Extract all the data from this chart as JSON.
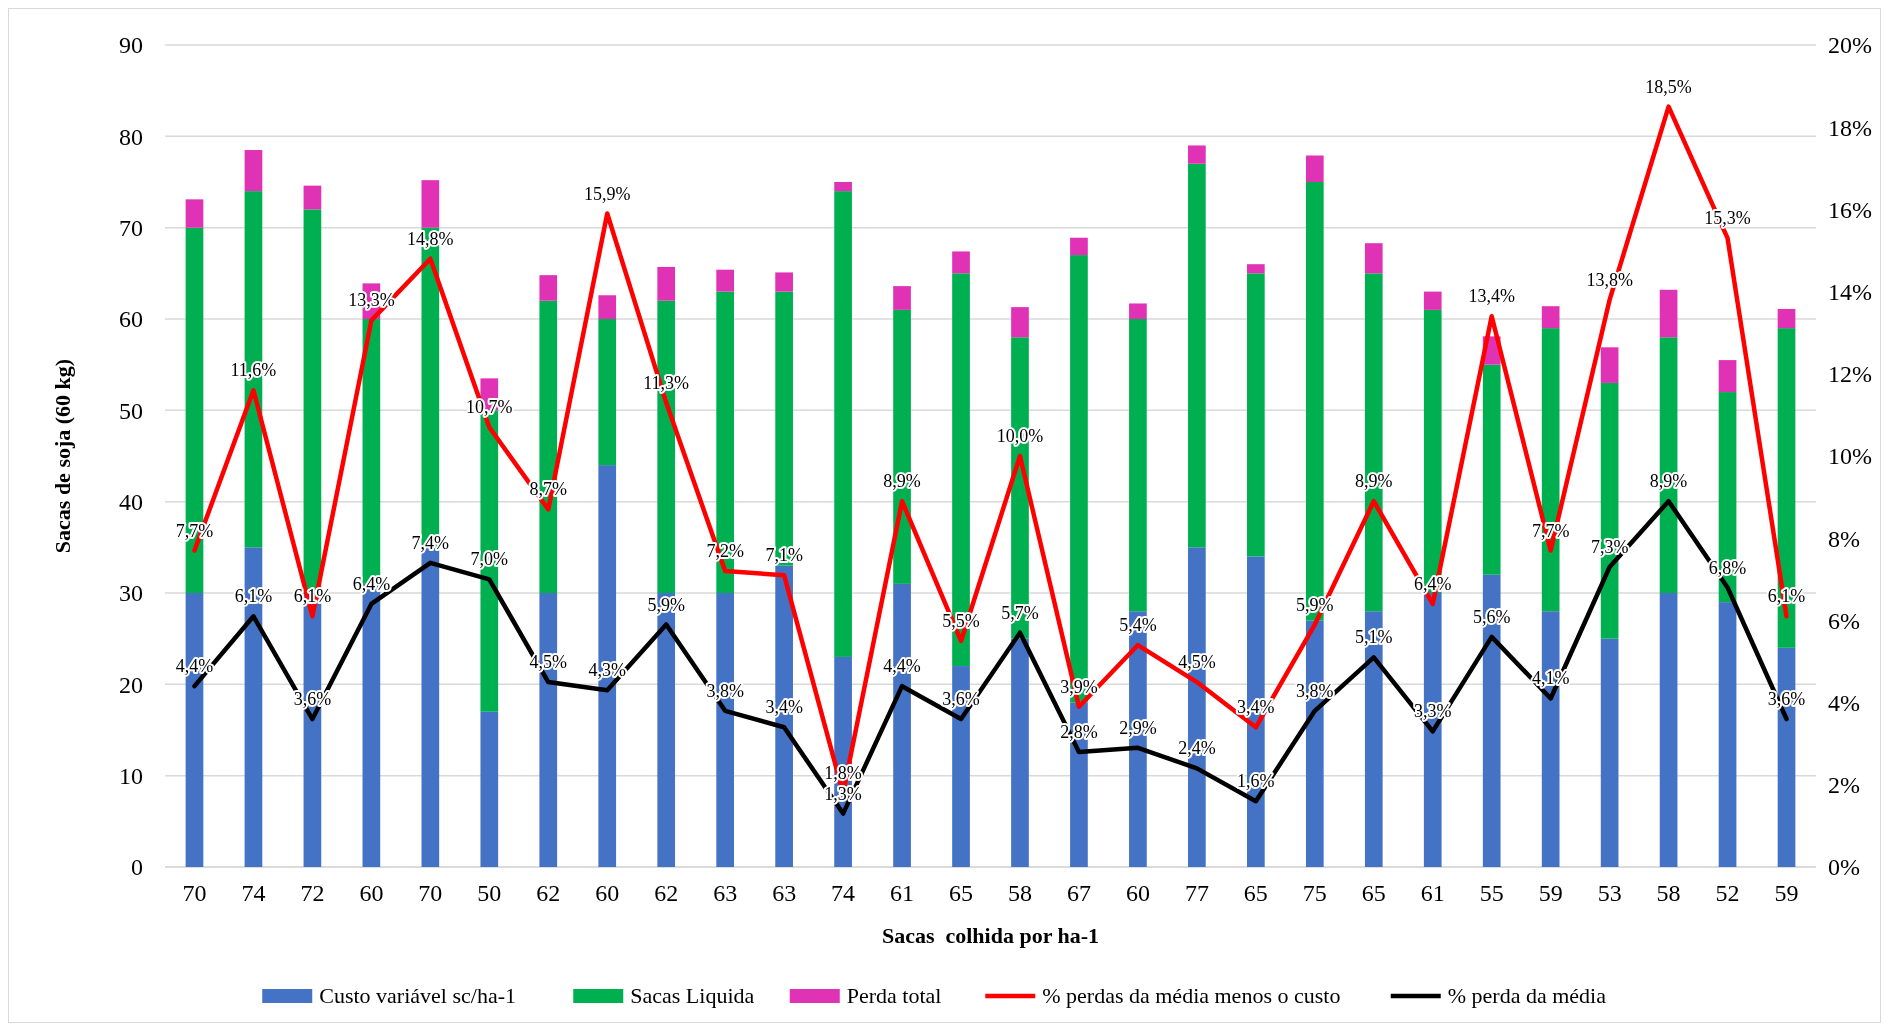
{
  "chart_data": {
    "type": "bar",
    "stacked": true,
    "xlabel": "Sacas  colhida por ha-1",
    "ylabel": "Sacas de soja (60 kg)",
    "categories": [
      "70",
      "74",
      "72",
      "60",
      "70",
      "50",
      "62",
      "60",
      "62",
      "63",
      "63",
      "74",
      "61",
      "65",
      "58",
      "67",
      "60",
      "77",
      "65",
      "75",
      "65",
      "61",
      "55",
      "59",
      "53",
      "58",
      "52",
      "59"
    ],
    "series": [
      {
        "name": "Custo variável sc/ha-1",
        "color": "#4472c4",
        "values": [
          30,
          35,
          30,
          31,
          35,
          17,
          30,
          44,
          30,
          30,
          33,
          23,
          31,
          22,
          25,
          18,
          28,
          35,
          34,
          27,
          28,
          30,
          32,
          28,
          25,
          30,
          29,
          24
        ]
      },
      {
        "name": "Sacas Liquida",
        "color": "#00b050",
        "values": [
          40,
          39,
          42,
          29,
          35,
          33,
          32,
          16,
          32,
          33,
          30,
          51,
          30,
          43,
          33,
          49,
          32,
          42,
          31,
          48,
          37,
          31,
          23,
          31,
          28,
          28,
          23,
          35
        ]
      },
      {
        "name": "Perda total",
        "color": "#e032b4",
        "values": [
          3.1,
          4.5,
          2.6,
          3.9,
          5.2,
          3.5,
          2.8,
          2.6,
          3.7,
          2.4,
          2.1,
          1.0,
          2.6,
          2.4,
          3.3,
          1.9,
          1.7,
          2.0,
          1.0,
          2.9,
          3.3,
          2.0,
          3.1,
          2.4,
          3.9,
          5.2,
          3.5,
          2.1
        ]
      },
      {
        "name": "% perdas da média menos o custo",
        "type": "line",
        "axis": "y2",
        "color": "#ff0000",
        "values": [
          7.7,
          11.6,
          6.1,
          13.3,
          14.8,
          10.7,
          8.7,
          15.9,
          11.3,
          7.2,
          7.1,
          1.8,
          8.9,
          5.5,
          10.0,
          3.9,
          5.4,
          4.5,
          3.4,
          5.9,
          8.9,
          6.4,
          13.4,
          7.7,
          13.8,
          18.5,
          15.3,
          6.1
        ],
        "value_labels": [
          "7,7%",
          "11,6%",
          "6,1%",
          "13,3%",
          "14,8%",
          "10,7%",
          "8,7%",
          "15,9%",
          "11,3%",
          "7,2%",
          "7,1%",
          "1,8%",
          "8,9%",
          "5,5%",
          "10,0%",
          "3,9%",
          "5,4%",
          "4,5%",
          "3,4%",
          "5,9%",
          "8,9%",
          "6,4%",
          "13,4%",
          "7,7%",
          "13,8%",
          "18,5%",
          "15,3%",
          "6,1%"
        ]
      },
      {
        "name": "% perda da média",
        "type": "line",
        "axis": "y2",
        "color": "#000000",
        "values": [
          4.4,
          6.1,
          3.6,
          6.4,
          7.4,
          7.0,
          4.5,
          4.3,
          5.9,
          3.8,
          3.4,
          1.3,
          4.4,
          3.6,
          5.7,
          2.8,
          2.9,
          2.4,
          1.6,
          3.8,
          5.1,
          3.3,
          5.6,
          4.1,
          7.3,
          8.9,
          6.8,
          3.6
        ],
        "value_labels": [
          "4,4%",
          "6,1%",
          "3,6%",
          "6,4%",
          "7,4%",
          "7,0%",
          "4,5%",
          "4,3%",
          "5,9%",
          "3,8%",
          "3,4%",
          "1,3%",
          "4,4%",
          "3,6%",
          "5,7%",
          "2,8%",
          "2,9%",
          "2,4%",
          "1,6%",
          "3,8%",
          "5,1%",
          "3,3%",
          "5,6%",
          "4,1%",
          "7,3%",
          "8,9%",
          "6,8%",
          "3,6%"
        ]
      }
    ],
    "ylim": [
      0,
      90
    ],
    "yticks": [
      0,
      10,
      20,
      30,
      40,
      50,
      60,
      70,
      80,
      90
    ],
    "y2lim": [
      0,
      20
    ],
    "y2ticks": [
      {
        "value": 0,
        "label": "0%"
      },
      {
        "value": 2,
        "label": "2%"
      },
      {
        "value": 4,
        "label": "4%"
      },
      {
        "value": 6,
        "label": "6%"
      },
      {
        "value": 8,
        "label": "8%"
      },
      {
        "value": 10,
        "label": "10%"
      },
      {
        "value": 12,
        "label": "12%"
      },
      {
        "value": 14,
        "label": "14%"
      },
      {
        "value": 16,
        "label": "16%"
      },
      {
        "value": 18,
        "label": "18%"
      },
      {
        "value": 20,
        "label": "20%"
      }
    ],
    "grid": "y",
    "legend": "bottom",
    "marker": "none"
  }
}
